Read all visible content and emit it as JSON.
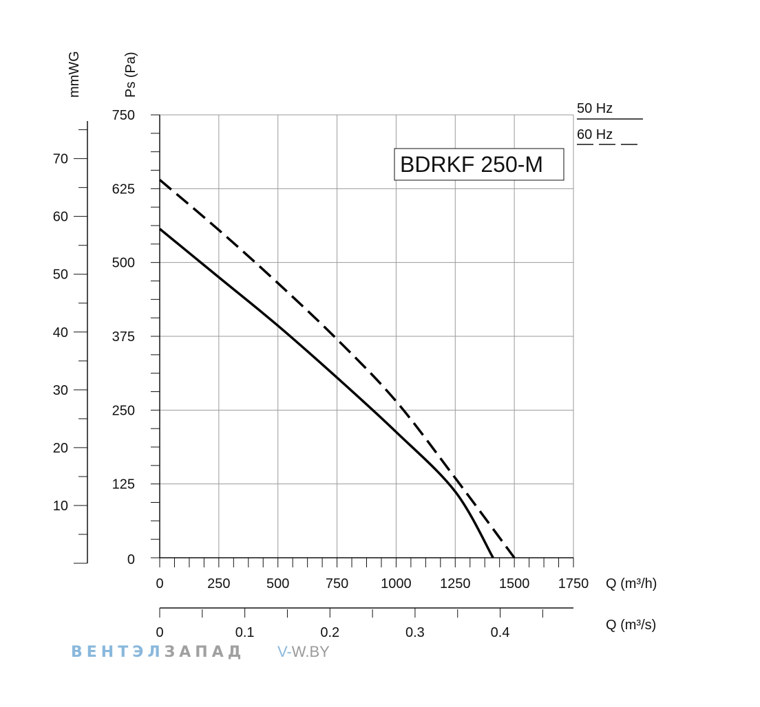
{
  "chart_data": {
    "type": "line",
    "model": "BDRKF 250-M",
    "x_axis_primary": {
      "title": "Q (m³/h)",
      "range": [
        0,
        1750
      ],
      "tick_labels": [
        "0",
        "250",
        "500",
        "750",
        "1000",
        "1250",
        "1500",
        "1750"
      ],
      "tick_values": [
        0,
        250,
        500,
        750,
        1000,
        1250,
        1500,
        1750
      ],
      "minor_step": 62.5
    },
    "x_axis_secondary": {
      "title": "Q (m³/s)",
      "range": [
        0,
        0.4861
      ],
      "tick_labels": [
        "0",
        "0.1",
        "0.2",
        "0.3",
        "0.4"
      ],
      "tick_values": [
        0,
        0.1,
        0.2,
        0.3,
        0.4
      ],
      "minor_step": 0.05
    },
    "y_axis_primary": {
      "title": "Ps (Pa)",
      "range": [
        0,
        750
      ],
      "tick_labels": [
        "0",
        "125",
        "250",
        "375",
        "500",
        "625",
        "750"
      ],
      "tick_values": [
        0,
        125,
        250,
        375,
        500,
        625,
        750
      ],
      "minor_step": 31.25
    },
    "y_axis_secondary": {
      "title": "mmWG",
      "range": [
        0,
        76.5
      ],
      "tick_labels": [
        "10",
        "20",
        "30",
        "40",
        "50",
        "60",
        "70"
      ],
      "tick_values": [
        10,
        20,
        30,
        40,
        50,
        60,
        70
      ],
      "minor_step": 5
    },
    "legend": [
      {
        "name": "50 Hz",
        "style": "solid",
        "position": "top-right"
      },
      {
        "name": "60 Hz",
        "style": "dashed",
        "position": "top-right"
      }
    ],
    "series": [
      {
        "name": "50 Hz",
        "style": "solid",
        "x": [
          0,
          250,
          500,
          750,
          1000,
          1250,
          1410
        ],
        "y": [
          557,
          475,
          393,
          305,
          213,
          112,
          0
        ]
      },
      {
        "name": "60 Hz",
        "style": "dashed",
        "x": [
          0,
          250,
          500,
          750,
          1000,
          1250,
          1500
        ],
        "y": [
          640,
          555,
          465,
          370,
          265,
          135,
          0
        ]
      }
    ],
    "grid": true
  },
  "watermark": {
    "brand_part1": "ВЕНТЭЛ",
    "brand_part2": "ЗАПАД",
    "url_prefix": "V-",
    "url_rest": "W.BY"
  },
  "colors": {
    "grid": "#9a9a9a",
    "axis": "#111111",
    "curve": "#000000",
    "brand_blue": "#8ab8dc",
    "brand_gray": "#a0a0a0",
    "url_blue": "#8ab8dc",
    "url_gray": "#9a9a9a"
  }
}
